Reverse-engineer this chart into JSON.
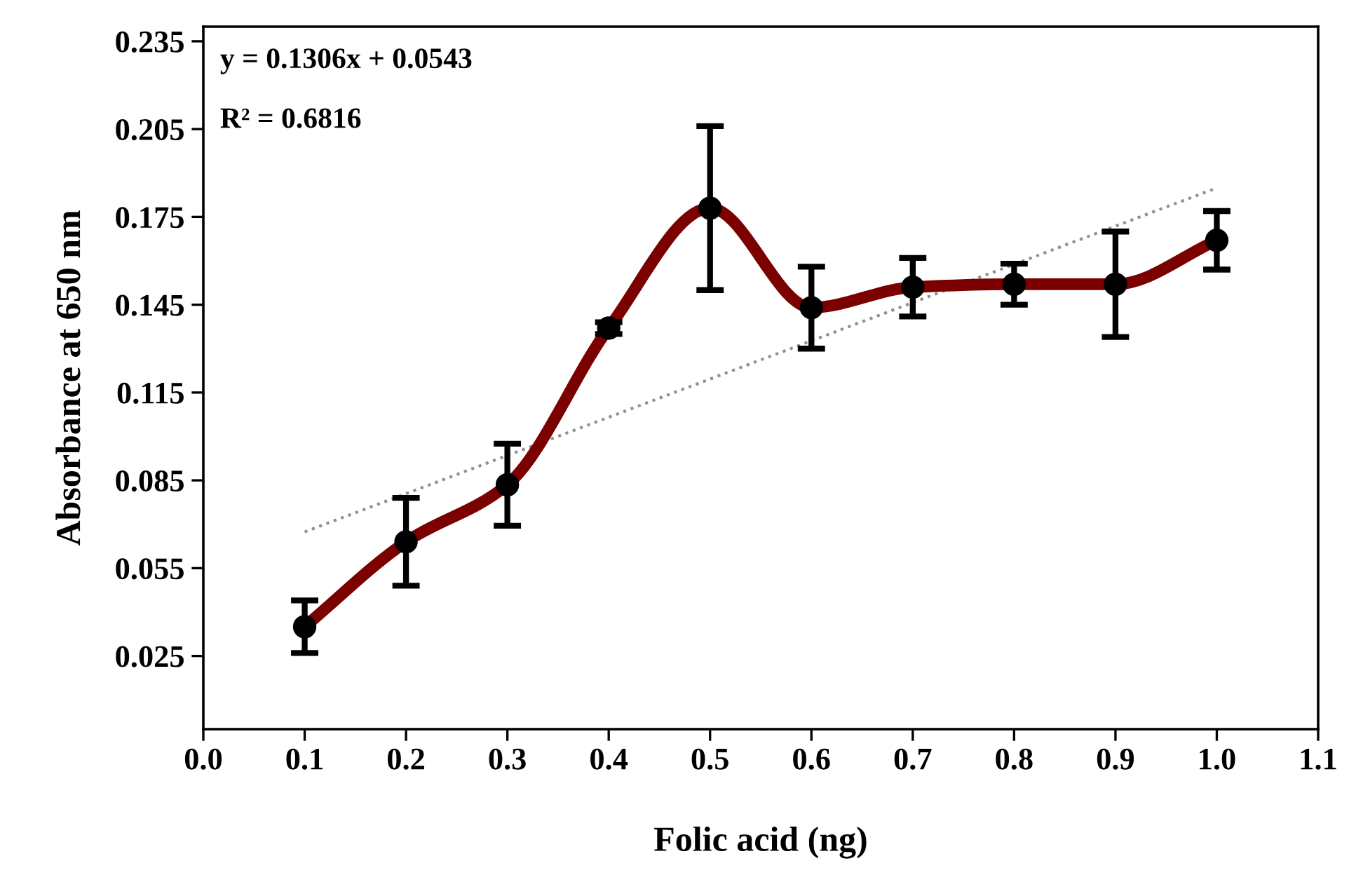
{
  "chart_data": {
    "type": "line",
    "xlabel": "Folic acid (ng)",
    "ylabel": "Absorbance at 650 nm",
    "annotations": [
      "y = 0.1306x + 0.0543",
      "R² = 0.6816"
    ],
    "series": [
      {
        "color": "#7b0000",
        "marker": "circle",
        "line_style": "solid",
        "x": [
          0.1,
          0.2,
          0.3,
          0.4,
          0.5,
          0.6,
          0.7,
          0.8,
          0.9,
          1.0
        ],
        "values": [
          0.035,
          0.064,
          0.0835,
          0.137,
          0.178,
          0.144,
          0.151,
          0.152,
          0.152,
          0.167
        ],
        "errors": [
          0.009,
          0.015,
          0.014,
          0.002,
          0.028,
          0.014,
          0.01,
          0.007,
          0.018,
          0.01
        ]
      },
      {
        "type": "line",
        "color": "#909090",
        "marker": "none",
        "line_style": "dotted",
        "x": [
          0.1,
          1.0
        ],
        "values": [
          0.0674,
          0.1849
        ]
      }
    ],
    "xlim": [
      0,
      1.1
    ],
    "ylim": [
      0,
      0.24
    ],
    "xticks": [
      {
        "value": 0,
        "label": "0.0"
      },
      0.1,
      0.2,
      0.3,
      0.4,
      0.5,
      0.6,
      0.7,
      0.8,
      0.9,
      {
        "value": 1.0,
        "label": "1.0"
      },
      1.1
    ],
    "yticks": [
      0.025,
      0.055,
      0.085,
      0.115,
      0.145,
      0.175,
      0.205,
      0.235
    ],
    "grid": false,
    "legend": false
  }
}
